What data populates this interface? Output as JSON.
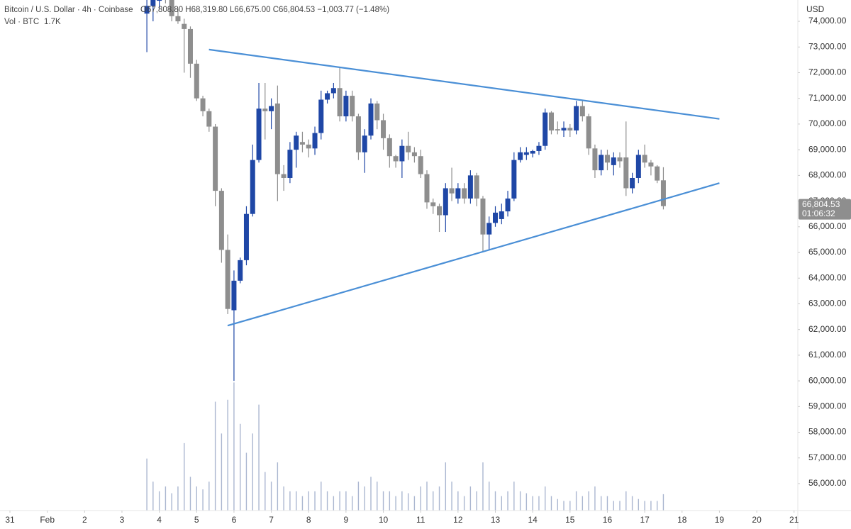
{
  "chart_data": {
    "type": "candlestick",
    "title": "Bitcoin / U.S. Dollar · 4h · Coinbase",
    "ohlc_readout": "O67,808.80 H68,319.80 L66,675.00 C66,804.53 −1,003.77 (−1.48%)",
    "volume_label": "Vol · BTC",
    "volume_readout": "1.7K",
    "currency": "USD",
    "up_color": "#1f47a6",
    "down_color": "#8e8e8e",
    "volume_color": "#aab6d0",
    "trendline_color": "#4a8fd6",
    "xlim": [
      -0.266,
      21.1
    ],
    "ylim": [
      54950,
      74830
    ],
    "y2lim": [
      0,
      53
    ],
    "xticks": [
      {
        "value": 0,
        "label": "31"
      },
      {
        "value": 1,
        "label": "Feb"
      },
      2,
      3,
      4,
      5,
      6,
      7,
      8,
      9,
      10,
      11,
      12,
      13,
      14,
      15,
      16,
      17,
      18,
      19,
      20,
      21
    ],
    "yticks": [
      {
        "value": 56000,
        "label": "56,000.00"
      },
      {
        "value": 57000,
        "label": "57,000.00"
      },
      {
        "value": 58000,
        "label": "58,000.00"
      },
      {
        "value": 59000,
        "label": "59,000.00"
      },
      {
        "value": 60000,
        "label": "60,000.00"
      },
      {
        "value": 61000,
        "label": "61,000.00"
      },
      {
        "value": 62000,
        "label": "62,000.00"
      },
      {
        "value": 63000,
        "label": "63,000.00"
      },
      {
        "value": 64000,
        "label": "64,000.00"
      },
      {
        "value": 65000,
        "label": "65,000.00"
      },
      {
        "value": 66000,
        "label": "66,000.00"
      },
      {
        "value": 67000,
        "label": "67,000.00"
      },
      {
        "value": 68000,
        "label": "68,000.00"
      },
      {
        "value": 69000,
        "label": "69,000.00"
      },
      {
        "value": 70000,
        "label": "70,000.00"
      },
      {
        "value": 71000,
        "label": "71,000.00"
      },
      {
        "value": 72000,
        "label": "72,000.00"
      },
      {
        "value": 73000,
        "label": "73,000.00"
      },
      {
        "value": 74000,
        "label": "74,000.00"
      }
    ],
    "price_tag": {
      "value": 66804.53,
      "label": "66,804.53",
      "countdown": "01:06:32"
    },
    "trendlines": [
      {
        "x": [
          5.33,
          19
        ],
        "y": [
          72900,
          70200
        ]
      },
      {
        "x": [
          5.83,
          19
        ],
        "y": [
          62150,
          67700
        ]
      }
    ],
    "candles": [
      [
        3.667,
        74300,
        75000,
        72800,
        74600,
        5.4
      ],
      [
        3.833,
        74600,
        75200,
        74000,
        74900,
        3
      ],
      [
        4.0,
        74800,
        75300,
        74500,
        75100,
        2
      ],
      [
        4.167,
        75100,
        75400,
        74700,
        74900,
        2.5
      ],
      [
        4.333,
        74900,
        75000,
        74000,
        74200,
        1.8
      ],
      [
        4.5,
        74200,
        74500,
        73900,
        74000,
        2.5
      ],
      [
        4.667,
        73900,
        74100,
        72000,
        73700,
        7
      ],
      [
        4.833,
        73700,
        73800,
        71800,
        72350,
        3.5
      ],
      [
        5.0,
        72350,
        72500,
        70900,
        71000,
        2.5
      ],
      [
        5.167,
        71000,
        71100,
        70300,
        70500,
        2.2
      ],
      [
        5.333,
        70500,
        70600,
        69700,
        69900,
        3
      ],
      [
        5.5,
        69900,
        70000,
        66800,
        67400,
        11.3
      ],
      [
        5.667,
        67400,
        67500,
        64600,
        65100,
        8
      ],
      [
        5.833,
        65100,
        65700,
        62600,
        62800,
        11.5
      ],
      [
        6.0,
        62750,
        64300,
        60000,
        63900,
        13.3
      ],
      [
        6.167,
        63900,
        64800,
        63800,
        64700,
        9
      ],
      [
        6.333,
        64700,
        66800,
        64500,
        66500,
        6
      ],
      [
        6.5,
        66500,
        69200,
        66400,
        68600,
        8
      ],
      [
        6.667,
        68600,
        71600,
        68500,
        70600,
        11
      ],
      [
        6.833,
        70600,
        71600,
        69400,
        70500,
        4
      ],
      [
        7.0,
        70500,
        71000,
        69800,
        70700,
        3
      ],
      [
        7.167,
        70800,
        71500,
        67000,
        68050,
        5
      ],
      [
        7.333,
        68050,
        68400,
        67400,
        67900,
        2.5
      ],
      [
        7.5,
        67900,
        69300,
        67700,
        69000,
        2
      ],
      [
        7.667,
        69000,
        69700,
        68300,
        69550,
        2
      ],
      [
        7.833,
        69300,
        69700,
        68900,
        69200,
        1.5
      ],
      [
        8.0,
        69200,
        69400,
        68700,
        69050,
        2
      ],
      [
        8.167,
        69050,
        69900,
        68800,
        69650,
        2
      ],
      [
        8.333,
        69650,
        71300,
        69400,
        70950,
        3
      ],
      [
        8.5,
        70950,
        71300,
        70800,
        71200,
        2
      ],
      [
        8.667,
        71200,
        71600,
        71000,
        71400,
        1.5
      ],
      [
        8.833,
        71400,
        72200,
        70100,
        70300,
        2
      ],
      [
        9.0,
        70300,
        71300,
        70100,
        71100,
        2
      ],
      [
        9.167,
        71100,
        71300,
        70100,
        70300,
        1.5
      ],
      [
        9.333,
        70300,
        70400,
        68600,
        68900,
        3
      ],
      [
        9.5,
        68900,
        69800,
        68100,
        69550,
        2.5
      ],
      [
        9.667,
        69550,
        71000,
        69400,
        70800,
        3.5
      ],
      [
        9.833,
        70800,
        70900,
        69800,
        70150,
        3
      ],
      [
        10.0,
        70150,
        70400,
        69000,
        69450,
        2
      ],
      [
        10.167,
        69450,
        69600,
        68300,
        68750,
        2
      ],
      [
        10.333,
        68750,
        68800,
        68300,
        68550,
        1.5
      ],
      [
        10.5,
        68550,
        69400,
        67900,
        69150,
        2
      ],
      [
        10.667,
        69150,
        69700,
        68600,
        68900,
        1.8
      ],
      [
        10.833,
        68900,
        69100,
        68500,
        68750,
        1.5
      ],
      [
        11.0,
        68750,
        69000,
        67900,
        68050,
        2.5
      ],
      [
        11.167,
        68050,
        68200,
        66700,
        66950,
        3
      ],
      [
        11.333,
        66950,
        67100,
        66500,
        66800,
        2
      ],
      [
        11.5,
        66800,
        66900,
        65800,
        66450,
        2.5
      ],
      [
        11.667,
        66450,
        67700,
        65800,
        67500,
        5
      ],
      [
        11.833,
        67500,
        68300,
        67000,
        67300,
        3
      ],
      [
        12.0,
        67100,
        67700,
        66900,
        67500,
        2
      ],
      [
        12.167,
        67500,
        67700,
        66900,
        67100,
        1.5
      ],
      [
        12.333,
        67100,
        68200,
        66900,
        68000,
        2.5
      ],
      [
        12.5,
        68000,
        68100,
        66800,
        67100,
        2
      ],
      [
        12.667,
        67100,
        67200,
        65000,
        65700,
        5
      ],
      [
        12.833,
        65700,
        66400,
        65100,
        66150,
        3
      ],
      [
        13.0,
        66150,
        66800,
        66000,
        66550,
        2
      ],
      [
        13.167,
        66300,
        66900,
        66100,
        66600,
        1.5
      ],
      [
        13.333,
        66600,
        67400,
        66400,
        67100,
        2
      ],
      [
        13.5,
        67100,
        68900,
        67000,
        68600,
        3
      ],
      [
        13.667,
        68600,
        69100,
        68500,
        68900,
        2
      ],
      [
        13.833,
        68800,
        69100,
        68600,
        68900,
        1.8
      ],
      [
        14.0,
        68850,
        69000,
        68700,
        68950,
        1.5
      ],
      [
        14.167,
        68950,
        69300,
        68800,
        69150,
        1.5
      ],
      [
        14.333,
        69150,
        70600,
        69000,
        70450,
        2.5
      ],
      [
        14.5,
        70450,
        70500,
        69600,
        69750,
        1.5
      ],
      [
        14.667,
        69800,
        70100,
        69600,
        69750,
        1.2
      ],
      [
        14.833,
        69750,
        70100,
        69500,
        69850,
        1
      ],
      [
        15.0,
        69850,
        70000,
        69500,
        69750,
        1
      ],
      [
        15.167,
        69750,
        70900,
        69600,
        70700,
        2
      ],
      [
        15.333,
        70700,
        70900,
        70100,
        70300,
        1.5
      ],
      [
        15.5,
        70300,
        70400,
        68800,
        69050,
        2
      ],
      [
        15.667,
        69050,
        69200,
        67900,
        68200,
        2.5
      ],
      [
        15.833,
        68200,
        69000,
        68000,
        68800,
        1.5
      ],
      [
        16.0,
        68800,
        69000,
        68200,
        68500,
        1.5
      ],
      [
        16.167,
        68400,
        68900,
        68000,
        68700,
        1
      ],
      [
        16.333,
        68700,
        68900,
        68300,
        68550,
        1
      ],
      [
        16.5,
        68700,
        70100,
        67200,
        67500,
        2
      ],
      [
        16.667,
        67500,
        68100,
        67300,
        67900,
        1.5
      ],
      [
        16.833,
        67900,
        69000,
        67700,
        68800,
        1.2
      ],
      [
        17.0,
        68800,
        69200,
        68300,
        68500,
        1
      ],
      [
        17.167,
        68500,
        68600,
        68000,
        68350,
        1
      ],
      [
        17.333,
        68350,
        68400,
        67700,
        67800,
        1
      ],
      [
        17.5,
        67808.8,
        68319.8,
        66675,
        66804.53,
        1.7
      ]
    ]
  }
}
